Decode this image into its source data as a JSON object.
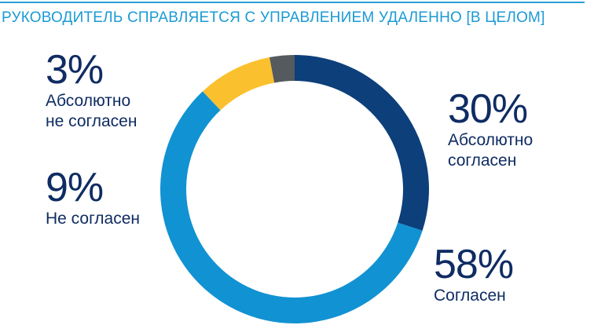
{
  "chart_data": {
    "type": "pie",
    "title": "РУКОВОДИТЕЛЬ СПРАВЛЯЕТСЯ С УПРАВЛЕНИЕМ УДАЛЕННО [В ЦЕЛОМ]",
    "slices": [
      {
        "label": "Абсолютно\nсогласен",
        "value": 30,
        "value_text": "30%",
        "color": "#0d3f7a"
      },
      {
        "label": "Согласен",
        "value": 58,
        "value_text": "58%",
        "color": "#1192d2"
      },
      {
        "label": "Не согласен",
        "value": 9,
        "value_text": "9%",
        "color": "#fbc02d"
      },
      {
        "label": "Абсолютно\nне согласен",
        "value": 3,
        "value_text": "3%",
        "color": "#555a5e"
      }
    ]
  }
}
